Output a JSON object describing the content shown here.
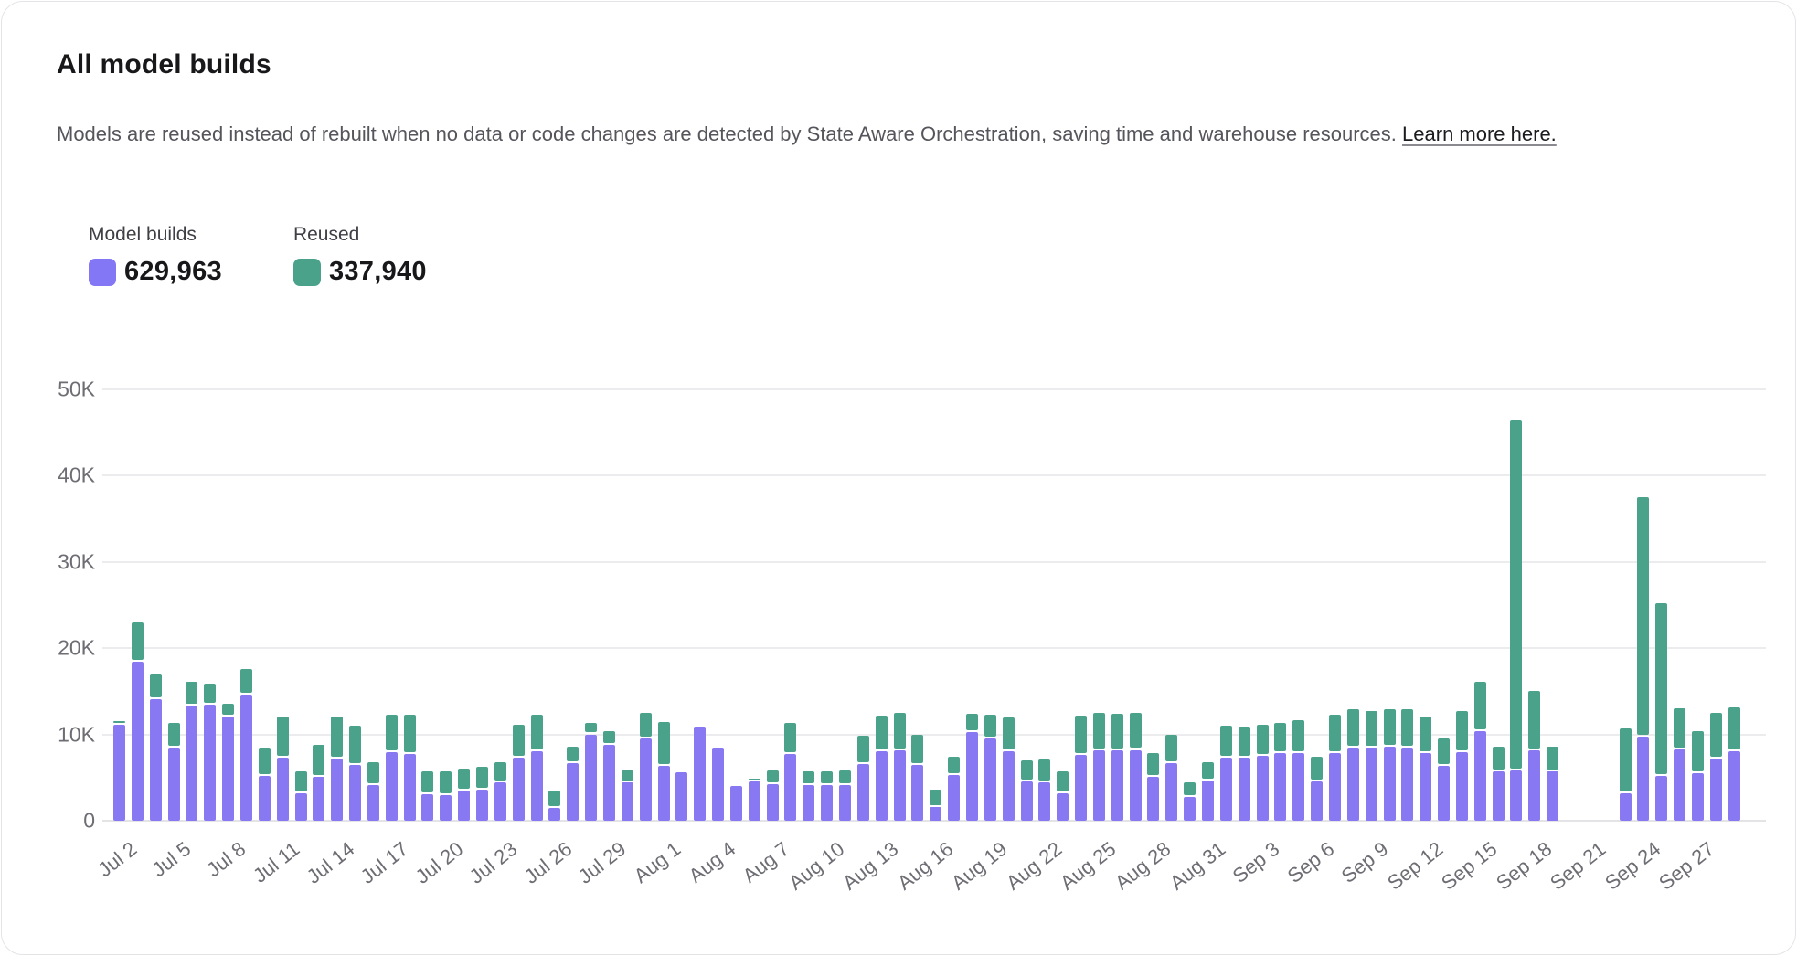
{
  "card": {
    "title": "All model builds",
    "description": "Models are reused instead of rebuilt when no data or code changes are detected by State Aware Orchestration, saving time and warehouse resources.",
    "link_text": "Learn more here."
  },
  "legend": {
    "model_builds": {
      "label": "Model builds",
      "value": "629,963",
      "color": "#8477F5"
    },
    "reused": {
      "label": "Reused",
      "value": "337,940",
      "color": "#4BA28B"
    }
  },
  "chart_data": {
    "type": "bar",
    "stacked": true,
    "grid": true,
    "ylim": [
      0,
      50000
    ],
    "y_ticks": [
      {
        "label": "0",
        "value": 0
      },
      {
        "label": "10K",
        "value": 10000
      },
      {
        "label": "20K",
        "value": 20000
      },
      {
        "label": "30K",
        "value": 30000
      },
      {
        "label": "40K",
        "value": 40000
      },
      {
        "label": "50K",
        "value": 50000
      }
    ],
    "x_tick_every": 3,
    "categories": [
      "Jul 2",
      "Jul 3",
      "Jul 4",
      "Jul 5",
      "Jul 6",
      "Jul 7",
      "Jul 8",
      "Jul 9",
      "Jul 10",
      "Jul 11",
      "Jul 12",
      "Jul 13",
      "Jul 14",
      "Jul 15",
      "Jul 16",
      "Jul 17",
      "Jul 18",
      "Jul 19",
      "Jul 20",
      "Jul 21",
      "Jul 22",
      "Jul 23",
      "Jul 24",
      "Jul 25",
      "Jul 26",
      "Jul 27",
      "Jul 28",
      "Jul 29",
      "Jul 30",
      "Jul 31",
      "Aug 1",
      "Aug 2",
      "Aug 3",
      "Aug 4",
      "Aug 5",
      "Aug 6",
      "Aug 7",
      "Aug 8",
      "Aug 9",
      "Aug 10",
      "Aug 11",
      "Aug 12",
      "Aug 13",
      "Aug 14",
      "Aug 15",
      "Aug 16",
      "Aug 17",
      "Aug 18",
      "Aug 19",
      "Aug 20",
      "Aug 21",
      "Aug 22",
      "Aug 23",
      "Aug 24",
      "Aug 25",
      "Aug 26",
      "Aug 27",
      "Aug 28",
      "Aug 29",
      "Aug 30",
      "Aug 31",
      "Sep 1",
      "Sep 2",
      "Sep 3",
      "Sep 4",
      "Sep 5",
      "Sep 6",
      "Sep 7",
      "Sep 8",
      "Sep 9",
      "Sep 10",
      "Sep 11",
      "Sep 12",
      "Sep 13",
      "Sep 14",
      "Sep 15",
      "Sep 16",
      "Sep 17",
      "Sep 18",
      "Sep 19",
      "Sep 20",
      "Sep 21",
      "Sep 22",
      "Sep 23",
      "Sep 24",
      "Sep 25",
      "Sep 26",
      "Sep 27",
      "Sep 28",
      "Sep 29"
    ],
    "series": [
      {
        "name": "Model builds",
        "color": "#8879F2",
        "values": [
          11150,
          18400,
          14100,
          8500,
          13300,
          13400,
          12100,
          14600,
          5200,
          7300,
          3200,
          5100,
          7200,
          6500,
          4100,
          7900,
          7700,
          3100,
          3000,
          3500,
          3600,
          4400,
          7300,
          8000,
          1500,
          6700,
          10000,
          8800,
          4400,
          9500,
          6400,
          5600,
          10900,
          8500,
          4000,
          4500,
          4200,
          7700,
          4100,
          4100,
          4100,
          6600,
          8000,
          8100,
          6500,
          1600,
          5300,
          10300,
          9500,
          8000,
          4500,
          4400,
          3200,
          7600,
          8100,
          8200,
          8200,
          5100,
          6700,
          2700,
          4700,
          7300,
          7300,
          7500,
          7800,
          7800,
          4500,
          7800,
          8500,
          8500,
          8600,
          8500,
          7800,
          6400,
          7900,
          10400,
          5700,
          5800,
          8100,
          5700,
          0,
          0,
          0,
          3200,
          9700,
          5200,
          8300,
          5500,
          7200,
          8000
        ]
      },
      {
        "name": "Reused",
        "color": "#4BA28B",
        "values": [
          200,
          4400,
          2700,
          2600,
          2600,
          2300,
          1200,
          2800,
          3100,
          4500,
          2300,
          3500,
          4700,
          4300,
          2500,
          4200,
          4400,
          2400,
          2500,
          2300,
          2400,
          2200,
          3600,
          4100,
          1800,
          1700,
          1100,
          1400,
          1200,
          2800,
          4800,
          0,
          0,
          0,
          0,
          200,
          1400,
          3400,
          1400,
          1400,
          1500,
          3000,
          4000,
          4200,
          3200,
          1800,
          1900,
          1900,
          2600,
          3700,
          2300,
          2500,
          2300,
          4400,
          4200,
          4000,
          4100,
          2500,
          3000,
          1500,
          1900,
          3500,
          3400,
          3400,
          3300,
          3600,
          2700,
          4300,
          4200,
          4000,
          4100,
          4200,
          4000,
          2900,
          4600,
          5500,
          2700,
          40300,
          6700,
          2700,
          0,
          0,
          0,
          7300,
          27600,
          19800,
          4500,
          4700,
          5100,
          4900
        ]
      }
    ]
  }
}
